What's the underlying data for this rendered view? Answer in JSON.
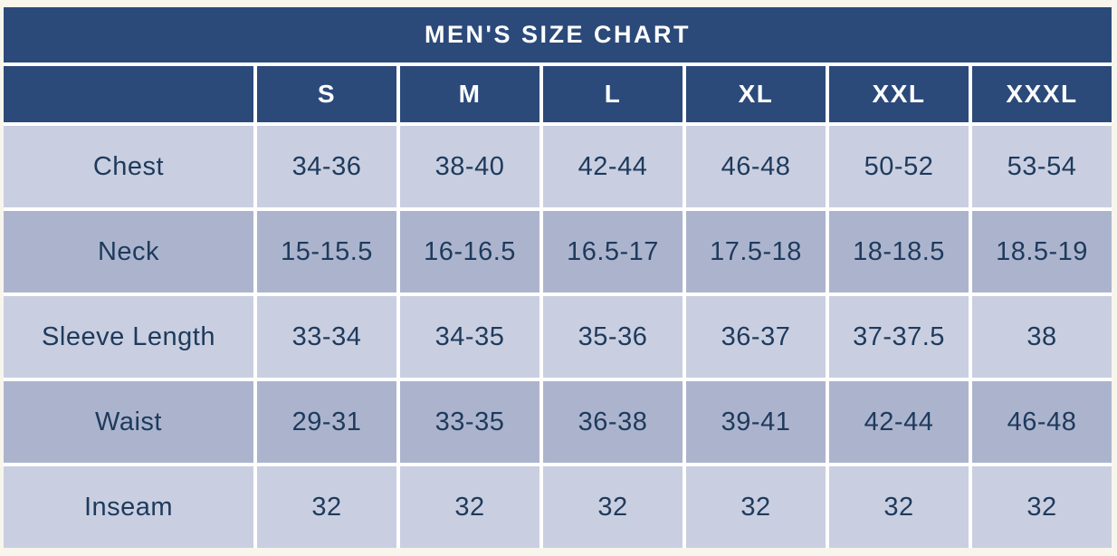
{
  "title": "MEN'S SIZE CHART",
  "colors": {
    "header_navy": "#2b4a7a",
    "row_light": "#c9cfe0",
    "row_dark": "#acb4cd",
    "cell_text": "#1e3a5d",
    "header_text": "#ffffff",
    "gap_white": "#ffffff",
    "page_background": "#f8f5ed"
  },
  "table": {
    "corner_label": "",
    "size_headers": [
      "S",
      "M",
      "L",
      "XL",
      "XXL",
      "XXXL"
    ],
    "rows": [
      {
        "label": "Chest",
        "values": [
          "34-36",
          "38-40",
          "42-44",
          "46-48",
          "50-52",
          "53-54"
        ]
      },
      {
        "label": "Neck",
        "values": [
          "15-15.5",
          "16-16.5",
          "16.5-17",
          "17.5-18",
          "18-18.5",
          "18.5-19"
        ]
      },
      {
        "label": "Sleeve Length",
        "values": [
          "33-34",
          "34-35",
          "35-36",
          "36-37",
          "37-37.5",
          "38"
        ]
      },
      {
        "label": "Waist",
        "values": [
          "29-31",
          "33-35",
          "36-38",
          "39-41",
          "42-44",
          "46-48"
        ]
      },
      {
        "label": "Inseam",
        "values": [
          "32",
          "32",
          "32",
          "32",
          "32",
          "32"
        ]
      }
    ]
  },
  "chart_data": {
    "type": "table",
    "title": "MEN'S SIZE CHART",
    "columns": [
      "",
      "S",
      "M",
      "L",
      "XL",
      "XXL",
      "XXXL"
    ],
    "rows": [
      [
        "Chest",
        "34-36",
        "38-40",
        "42-44",
        "46-48",
        "50-52",
        "53-54"
      ],
      [
        "Neck",
        "15-15.5",
        "16-16.5",
        "16.5-17",
        "17.5-18",
        "18-18.5",
        "18.5-19"
      ],
      [
        "Sleeve Length",
        "33-34",
        "34-35",
        "35-36",
        "36-37",
        "37-37.5",
        "38"
      ],
      [
        "Waist",
        "29-31",
        "33-35",
        "36-38",
        "39-41",
        "42-44",
        "46-48"
      ],
      [
        "Inseam",
        "32",
        "32",
        "32",
        "32",
        "32",
        "32"
      ]
    ],
    "layout_hints": {
      "title_row_spans_full_width": true,
      "alternating_row_colors": true,
      "grid_gaps_white": true
    }
  }
}
